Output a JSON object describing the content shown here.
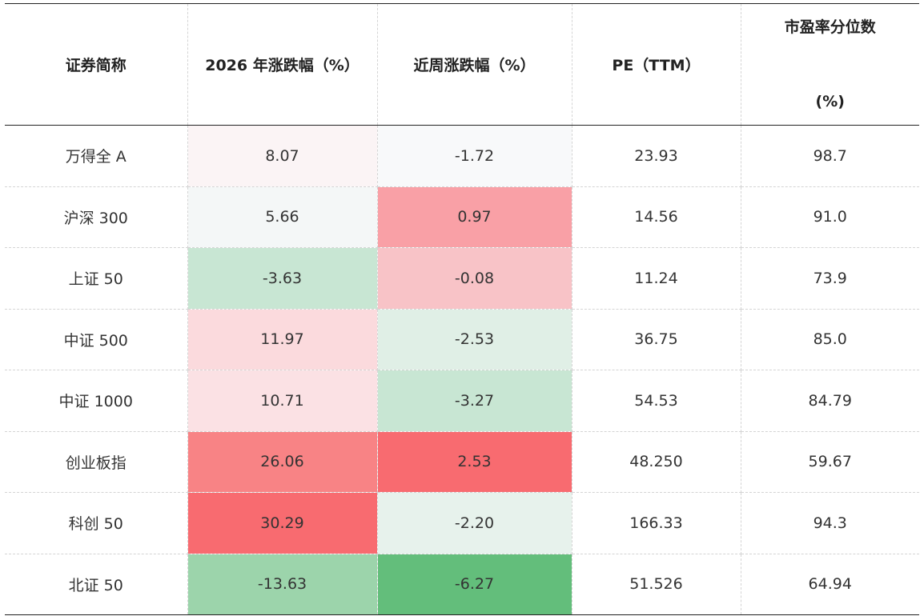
{
  "headers": {
    "name": "证券简称",
    "ytd": "2026 年涨跌幅（%）",
    "week": "近周涨跌幅（%）",
    "pe": "PE（TTM）",
    "pct_line1": "市盈率分位数",
    "pct_line2": "(%)"
  },
  "rows": [
    {
      "name": "万得全 A",
      "ytd": "8.07",
      "week": "-1.72",
      "pe": "23.93",
      "pct": "98.7",
      "ytd_color": "#fbf4f5",
      "week_color": "#f8f9fa"
    },
    {
      "name": "沪深 300",
      "ytd": "5.66",
      "week": "0.97",
      "pe": "14.56",
      "pct": "91.0",
      "ytd_color": "#f4f7f7",
      "week_color": "#f9a0a6"
    },
    {
      "name": "上证 50",
      "ytd": "-3.63",
      "week": "-0.08",
      "pe": "11.24",
      "pct": "73.9",
      "ytd_color": "#c8e6d3",
      "week_color": "#f8c3c7"
    },
    {
      "name": "中证 500",
      "ytd": "11.97",
      "week": "-2.53",
      "pe": "36.75",
      "pct": "85.0",
      "ytd_color": "#fbdadd",
      "week_color": "#e0efe6"
    },
    {
      "name": "中证 1000",
      "ytd": "10.71",
      "week": "-3.27",
      "pe": "54.53",
      "pct": "84.79",
      "ytd_color": "#fbe1e4",
      "week_color": "#c8e6d3"
    },
    {
      "name": "创业板指",
      "ytd": "26.06",
      "week": "2.53",
      "pe": "48.250",
      "pct": "59.67",
      "ytd_color": "#f88385",
      "week_color": "#f86b70"
    },
    {
      "name": "科创 50",
      "ytd": "30.29",
      "week": "-2.20",
      "pe": "166.33",
      "pct": "94.3",
      "ytd_color": "#f86b70",
      "week_color": "#e7f2ec"
    },
    {
      "name": "北证 50",
      "ytd": "-13.63",
      "week": "-6.27",
      "pe": "51.526",
      "pct": "64.94",
      "ytd_color": "#9cd4ab",
      "week_color": "#63be7b"
    }
  ]
}
